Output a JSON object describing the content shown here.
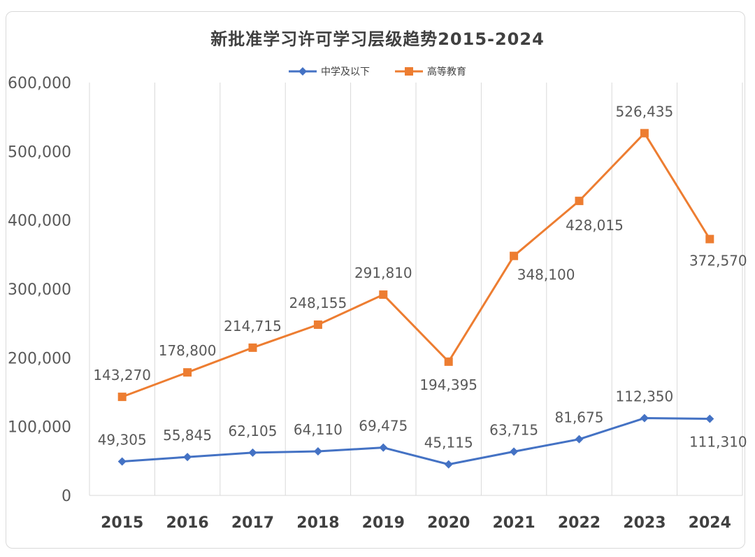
{
  "chart_data": {
    "type": "line",
    "title": "新批准学习许可学习层级趋势2015-2024",
    "categories": [
      "2015",
      "2016",
      "2017",
      "2018",
      "2019",
      "2020",
      "2021",
      "2022",
      "2023",
      "2024"
    ],
    "yticks": [
      "0",
      "100,000",
      "200,000",
      "300,000",
      "400,000",
      "500,000",
      "600,000"
    ],
    "ylim": [
      0,
      600000
    ],
    "series": [
      {
        "name": "中学及以下",
        "color": "#4472c4",
        "marker": "diamond",
        "values": [
          49305,
          55845,
          62105,
          64110,
          69475,
          45115,
          63715,
          81675,
          112350,
          111310
        ],
        "labels": [
          "49,305",
          "55,845",
          "62,105",
          "64,110",
          "69,475",
          "45,115",
          "63,715",
          "81,675",
          "112,350",
          "111,310"
        ]
      },
      {
        "name": "高等教育",
        "color": "#ed7d31",
        "marker": "square",
        "values": [
          143270,
          178800,
          214715,
          248155,
          291810,
          194395,
          348100,
          428015,
          526435,
          372570
        ],
        "labels": [
          "143,270",
          "178,800",
          "214,715",
          "248,155",
          "291,810",
          "194,395",
          "348,100",
          "428,015",
          "526,435",
          "372,570"
        ]
      }
    ],
    "legend_position": "top",
    "grid": "vertical"
  }
}
